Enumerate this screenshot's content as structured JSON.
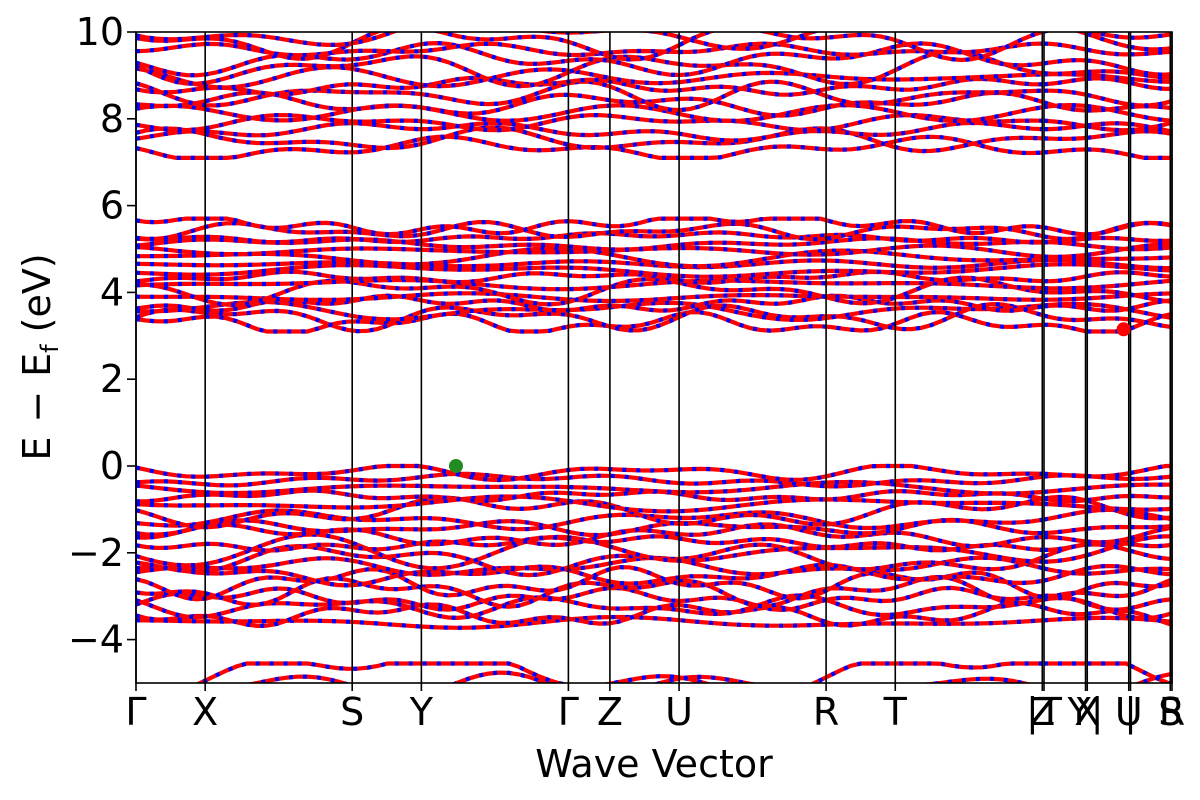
{
  "chart_data": {
    "type": "line",
    "xlabel": "Wave Vector",
    "ylabel": "E − E_f (eV)",
    "ylabel_parts": {
      "a": "E",
      "minus": "−",
      "b": "E",
      "sub": "f",
      "unit": "(eV)"
    },
    "ylim": [
      -5,
      10
    ],
    "yticks": [
      {
        "value": -4,
        "label": "−4"
      },
      {
        "value": -2,
        "label": "−2"
      },
      {
        "value": 0,
        "label": "0"
      },
      {
        "value": 2,
        "label": "2"
      },
      {
        "value": 4,
        "label": "4"
      },
      {
        "value": 6,
        "label": "6"
      },
      {
        "value": 8,
        "label": "8"
      },
      {
        "value": 10,
        "label": "10"
      }
    ],
    "kpoints": [
      {
        "label": "Γ",
        "x": 0.0
      },
      {
        "label": "X",
        "x": 0.4
      },
      {
        "label": "S",
        "x": 1.25
      },
      {
        "label": "Y",
        "x": 1.65
      },
      {
        "label": "Γ",
        "x": 2.5
      },
      {
        "label": "Z",
        "x": 2.74
      },
      {
        "label": "U",
        "x": 3.14
      },
      {
        "label": "R",
        "x": 3.99
      },
      {
        "label": "T",
        "x": 4.39
      },
      {
        "label": "Z",
        "x": 5.24
      },
      {
        "label": "|T",
        "x": 5.25
      },
      {
        "label": "Y|",
        "x": 5.49
      },
      {
        "label": "X",
        "x": 5.5
      },
      {
        "label": "U",
        "x": 5.74
      },
      {
        "label": "|",
        "x": 5.75
      },
      {
        "label": "S",
        "x": 5.98
      },
      {
        "label": "R",
        "x": 5.99
      }
    ],
    "xlim": [
      0.0,
      5.99
    ],
    "segments": [
      [
        0.0,
        5.24
      ],
      [
        5.25,
        5.49
      ],
      [
        5.5,
        5.74
      ],
      [
        5.75,
        5.99
      ]
    ],
    "band_colors": {
      "line": "#ff0000",
      "dash": "#0000ff"
    },
    "band_groups": {
      "high": {
        "count": 14,
        "range": [
          7.2,
          10.1
        ]
      },
      "conduction": {
        "count": 16,
        "range": [
          3.2,
          5.65
        ]
      },
      "valence": {
        "count": 20,
        "range": [
          -3.7,
          -0.05
        ]
      },
      "deep": {
        "count": 2,
        "range": [
          -5.2,
          -4.6
        ]
      }
    },
    "markers": [
      {
        "name": "VBM",
        "x": 1.85,
        "y": 0.0,
        "color": "#228b22"
      },
      {
        "name": "CBM",
        "x": 5.71,
        "y": 3.15,
        "color": "#ff0000"
      }
    ]
  }
}
